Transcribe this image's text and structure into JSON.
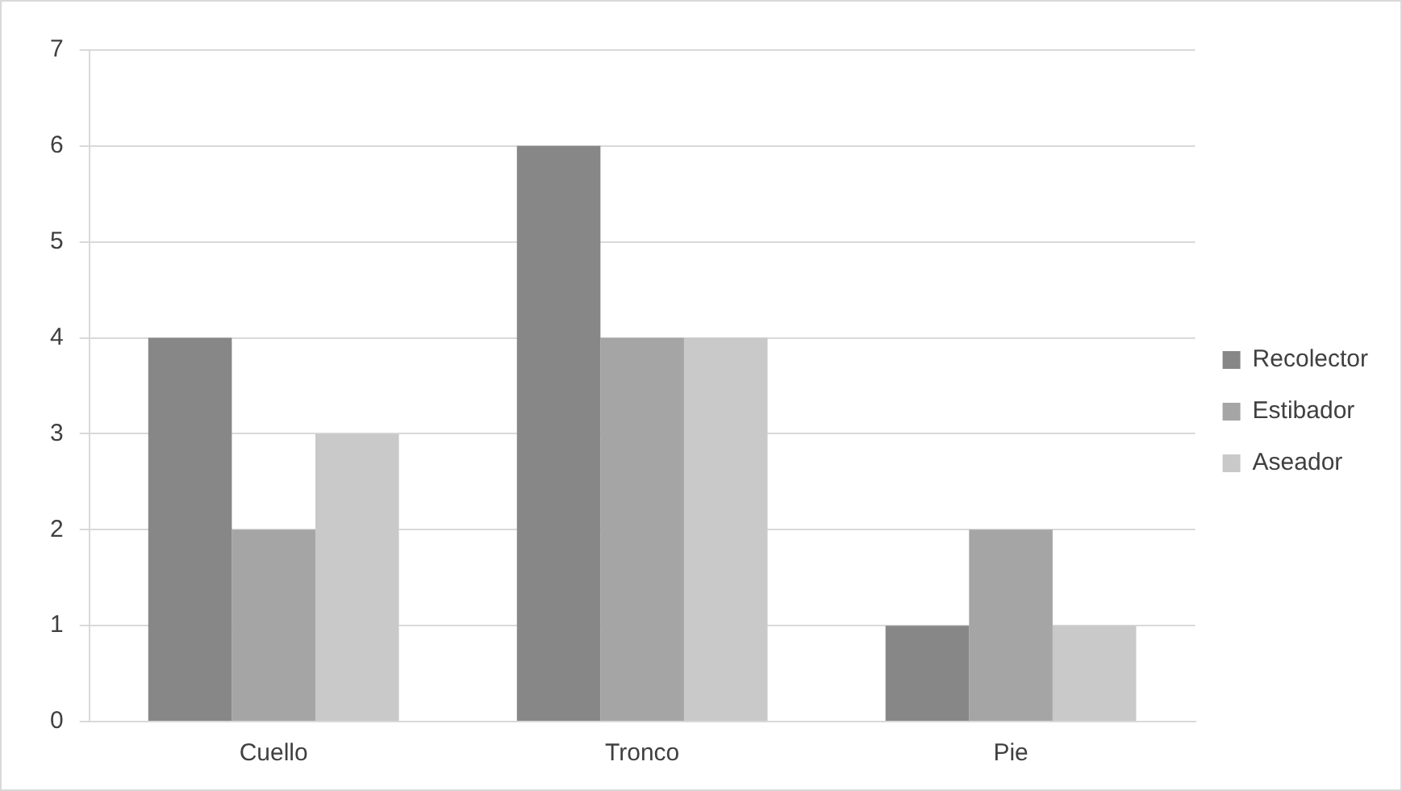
{
  "chart_data": {
    "type": "bar",
    "categories": [
      "Cuello",
      "Tronco",
      "Pie"
    ],
    "series": [
      {
        "name": "Recolector",
        "color": "#878787",
        "values": [
          4,
          6,
          1
        ]
      },
      {
        "name": "Estibador",
        "color": "#a5a5a5",
        "values": [
          2,
          4,
          2
        ]
      },
      {
        "name": "Aseador",
        "color": "#c9c9c9",
        "values": [
          3,
          4,
          1
        ]
      }
    ],
    "ylim": [
      0,
      7
    ],
    "yticks": [
      0,
      1,
      2,
      3,
      4,
      5,
      6,
      7
    ],
    "grid": "y",
    "legend": "right"
  }
}
